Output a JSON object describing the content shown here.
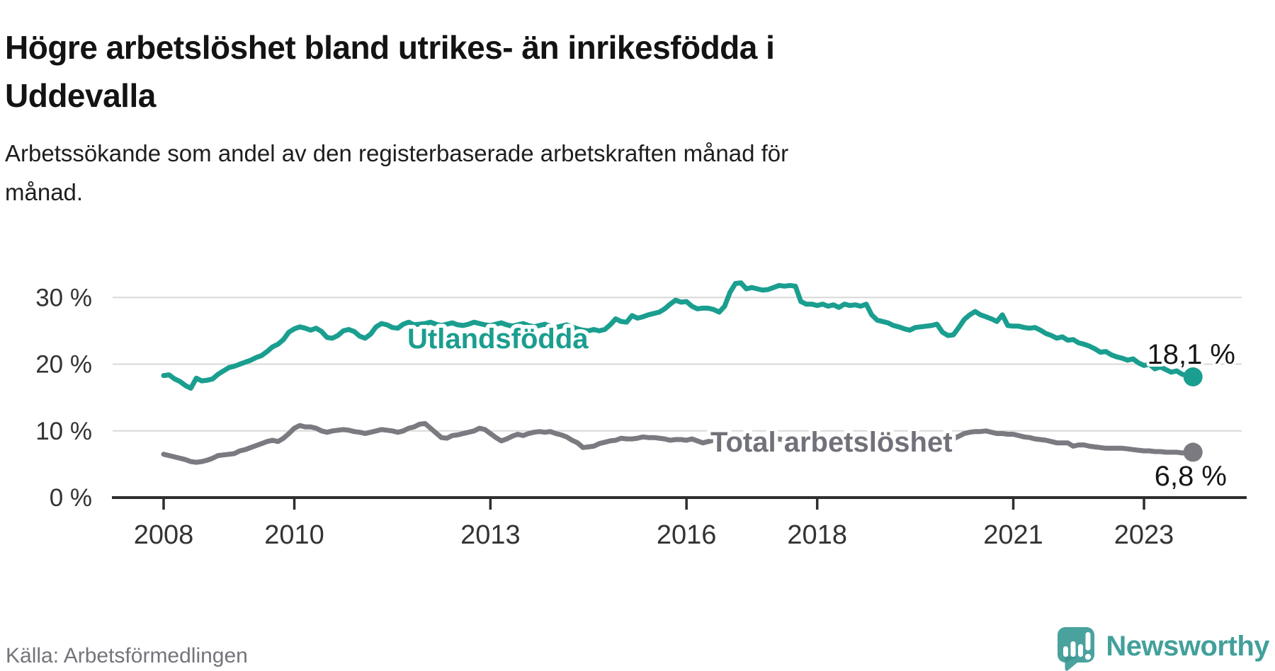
{
  "header": {
    "title_lines": [
      "Högre arbetslöshet bland utrikes- än inrikesfödda i",
      "Uddevalla"
    ],
    "subtitle_lines": [
      "Arbetssökande som andel av den registerbaserade arbetskraften månad för",
      "månad."
    ]
  },
  "footer": {
    "source": "Källa: Arbetsförmedlingen",
    "brand": "Newsworthy"
  },
  "colors": {
    "foreign_born_line": "#1a9e8f",
    "total_line": "#7a7a80",
    "total_label": "#71717a",
    "axis": "#2e2e2e",
    "gridline": "#d8d8d8",
    "tick_label": "#333333",
    "value_label": "#161616",
    "brand_teal": "#4aa29e"
  },
  "chart_data": {
    "type": "line",
    "title": "Arbetssökande som andel av den registerbaserade arbetskraften månad för månad",
    "x_start": "2008-01",
    "x_end": "2023-10",
    "x_interval": "month",
    "grid": "horizontal",
    "ylim": [
      0,
      33
    ],
    "yticks": [
      {
        "label": "0 %",
        "value": 0
      },
      {
        "label": "10 %",
        "value": 10
      },
      {
        "label": "20 %",
        "value": 20
      },
      {
        "label": "30 %",
        "value": 30
      }
    ],
    "xticks": [
      {
        "label": "2008",
        "year": 2008
      },
      {
        "label": "2010",
        "year": 2010
      },
      {
        "label": "2013",
        "year": 2013
      },
      {
        "label": "2016",
        "year": 2016
      },
      {
        "label": "2018",
        "year": 2018
      },
      {
        "label": "2021",
        "year": 2021
      },
      {
        "label": "2023",
        "year": 2023
      }
    ],
    "series": [
      {
        "id": "utlandsfodda",
        "name": "Utlandsfödda",
        "end_label": "18,1 %",
        "end_value": 18.1,
        "values": [
          18.3,
          18.4,
          17.8,
          17.4,
          16.8,
          16.4,
          17.9,
          17.5,
          17.6,
          17.8,
          18.5,
          19.0,
          19.5,
          19.7,
          20.0,
          20.3,
          20.6,
          21.0,
          21.3,
          21.9,
          22.6,
          23.0,
          23.7,
          24.8,
          25.3,
          25.6,
          25.4,
          25.1,
          25.4,
          24.9,
          24.0,
          23.9,
          24.3,
          25.0,
          25.2,
          24.9,
          24.2,
          23.9,
          24.5,
          25.6,
          26.1,
          25.9,
          25.5,
          25.4,
          26.0,
          26.3,
          25.9,
          26.0,
          26.1,
          26.3,
          26.0,
          25.8,
          26.0,
          26.2,
          25.9,
          25.8,
          26.0,
          26.3,
          26.1,
          25.9,
          25.8,
          26.0,
          26.2,
          25.9,
          25.7,
          25.9,
          26.1,
          25.8,
          25.6,
          25.8,
          26.0,
          25.7,
          25.5,
          25.7,
          25.9,
          25.6,
          25.3,
          25.1,
          25.0,
          25.2,
          25.0,
          25.2,
          25.9,
          26.8,
          26.4,
          26.3,
          27.3,
          26.9,
          27.1,
          27.4,
          27.6,
          27.8,
          28.3,
          29.0,
          29.6,
          29.3,
          29.4,
          28.7,
          28.3,
          28.4,
          28.4,
          28.2,
          27.8,
          28.7,
          30.8,
          32.1,
          32.2,
          31.3,
          31.5,
          31.3,
          31.1,
          31.2,
          31.5,
          31.8,
          31.7,
          31.8,
          31.7,
          29.4,
          29.0,
          29.0,
          28.8,
          29.0,
          28.7,
          28.9,
          28.5,
          29.0,
          28.8,
          28.9,
          28.7,
          29.0,
          27.4,
          26.6,
          26.4,
          26.2,
          25.8,
          25.6,
          25.3,
          25.1,
          25.5,
          25.6,
          25.7,
          25.8,
          26.0,
          24.8,
          24.3,
          24.4,
          25.5,
          26.7,
          27.4,
          27.9,
          27.4,
          27.1,
          26.8,
          26.4,
          27.4,
          25.8,
          25.7,
          25.7,
          25.5,
          25.4,
          25.5,
          25.1,
          24.6,
          24.3,
          23.9,
          24.1,
          23.6,
          23.7,
          23.2,
          23.0,
          22.7,
          22.3,
          21.8,
          21.9,
          21.4,
          21.1,
          20.9,
          20.6,
          20.8,
          20.2,
          19.8,
          20.0,
          19.3,
          19.6,
          19.2,
          18.8,
          19.0,
          18.5,
          18.3,
          18.1
        ]
      },
      {
        "id": "total-arbetsloshet",
        "name": "Total arbetslöshet",
        "end_label": "6,8 %",
        "end_value": 6.8,
        "values": [
          6.5,
          6.3,
          6.1,
          5.9,
          5.7,
          5.4,
          5.3,
          5.4,
          5.6,
          5.9,
          6.3,
          6.4,
          6.5,
          6.6,
          7.0,
          7.2,
          7.5,
          7.8,
          8.1,
          8.4,
          8.6,
          8.4,
          8.9,
          9.6,
          10.4,
          10.8,
          10.6,
          10.6,
          10.4,
          10.0,
          9.8,
          10.0,
          10.1,
          10.2,
          10.1,
          9.9,
          9.8,
          9.6,
          9.8,
          10.0,
          10.2,
          10.1,
          10.0,
          9.8,
          10.0,
          10.4,
          10.6,
          11.0,
          11.1,
          10.4,
          9.7,
          9.0,
          8.9,
          9.3,
          9.4,
          9.6,
          9.8,
          10.0,
          10.4,
          10.2,
          9.6,
          9.0,
          8.5,
          8.8,
          9.2,
          9.5,
          9.3,
          9.6,
          9.8,
          9.9,
          9.8,
          9.9,
          9.6,
          9.4,
          9.1,
          8.6,
          8.2,
          7.5,
          7.6,
          7.7,
          8.1,
          8.3,
          8.5,
          8.6,
          8.9,
          8.8,
          8.8,
          8.9,
          9.1,
          9.0,
          9.0,
          8.9,
          8.8,
          8.6,
          8.7,
          8.7,
          8.6,
          8.8,
          8.5,
          8.2,
          8.4,
          8.6,
          8.5,
          8.4,
          8.6,
          8.7,
          8.5,
          8.6,
          8.5,
          8.6,
          8.4,
          8.5,
          8.7,
          8.8,
          8.6,
          8.5,
          8.7,
          8.6,
          8.4,
          8.5,
          8.4,
          8.5,
          8.3,
          8.4,
          8.6,
          8.5,
          8.4,
          8.3,
          8.5,
          8.4,
          8.3,
          8.4,
          8.3,
          8.4,
          8.5,
          8.4,
          8.6,
          8.5,
          8.6,
          8.5,
          8.7,
          8.6,
          8.5,
          8.6,
          8.7,
          8.8,
          9.2,
          9.6,
          9.8,
          9.9,
          9.9,
          10.0,
          9.8,
          9.6,
          9.6,
          9.5,
          9.5,
          9.3,
          9.1,
          9.0,
          8.8,
          8.7,
          8.6,
          8.4,
          8.2,
          8.2,
          8.2,
          7.7,
          7.9,
          7.9,
          7.7,
          7.6,
          7.5,
          7.4,
          7.4,
          7.4,
          7.4,
          7.3,
          7.2,
          7.1,
          7.0,
          7.0,
          6.9,
          6.9,
          6.8,
          6.8,
          6.8,
          6.7,
          6.7,
          6.8
        ]
      }
    ]
  }
}
